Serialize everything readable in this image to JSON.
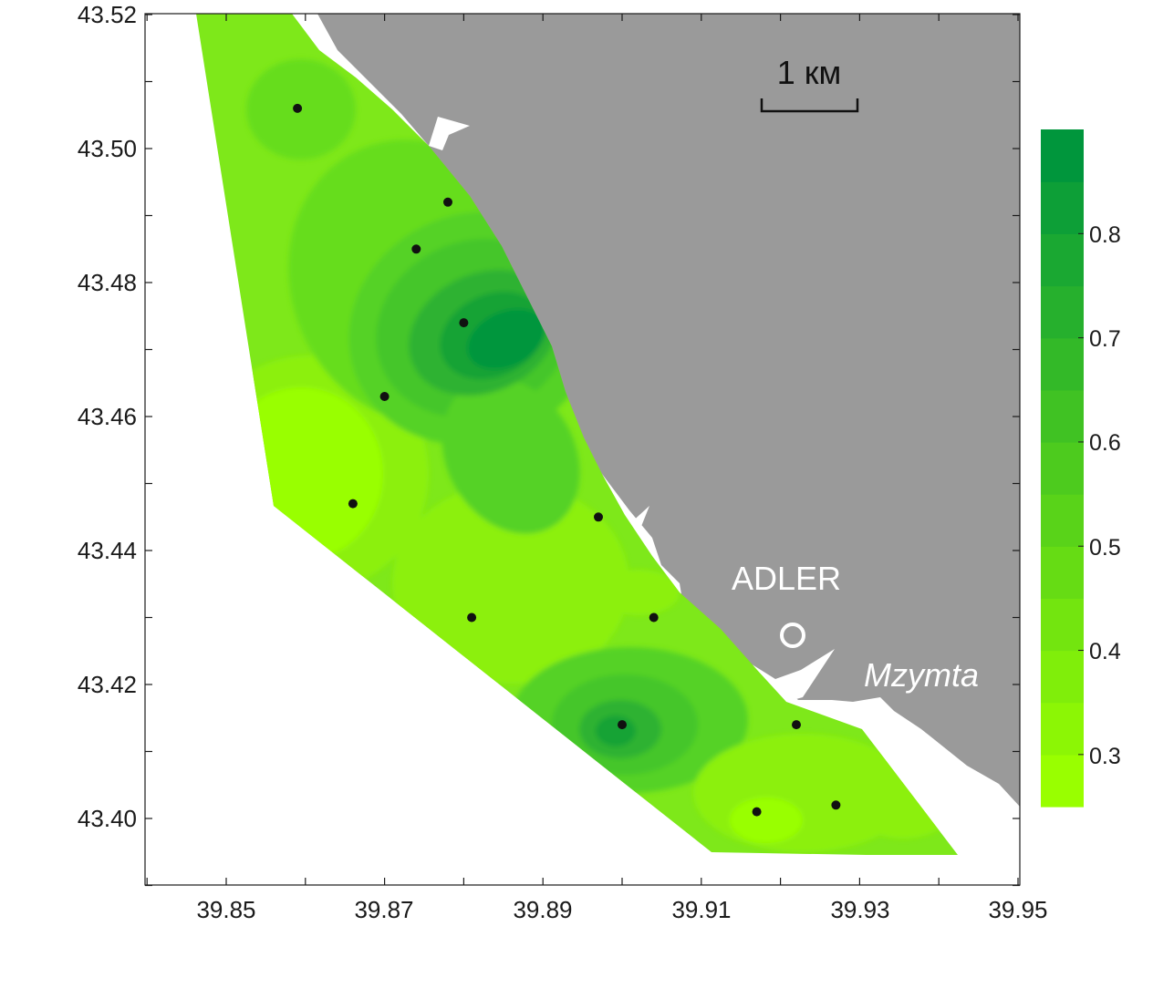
{
  "map": {
    "x_axis": {
      "min": 39.84,
      "max": 39.95,
      "ticks": [
        "39.85",
        "39.87",
        "39.89",
        "39.91",
        "39.93",
        "39.95"
      ]
    },
    "y_axis": {
      "min": 43.39,
      "max": 43.52,
      "ticks": [
        "43.52",
        "43.50",
        "43.48",
        "43.46",
        "43.44",
        "43.42",
        "43.40"
      ]
    },
    "scale_bar": {
      "label": "1 км"
    },
    "places": [
      {
        "label": "ADLER",
        "lon": 39.92,
        "lat": 43.4305
      },
      {
        "label": "Mzymta",
        "lon": 39.932,
        "lat": 43.4215
      }
    ],
    "colorbar": {
      "labels": [
        "0.8",
        "0.7",
        "0.6",
        "0.5",
        "0.4",
        "0.3"
      ],
      "values": [
        0.8,
        0.7,
        0.6,
        0.5,
        0.4,
        0.3
      ],
      "min": 0.25,
      "max": 0.9
    },
    "colors": {
      "land": "#9a9a9a",
      "low": "#99ff00",
      "high": "#00963c",
      "station": "#111111"
    },
    "stations": [
      {
        "lon": 39.859,
        "lat": 43.506
      },
      {
        "lon": 39.878,
        "lat": 43.492
      },
      {
        "lon": 39.874,
        "lat": 43.485
      },
      {
        "lon": 39.88,
        "lat": 43.474
      },
      {
        "lon": 39.87,
        "lat": 43.463
      },
      {
        "lon": 39.866,
        "lat": 43.447
      },
      {
        "lon": 39.897,
        "lat": 43.445
      },
      {
        "lon": 39.881,
        "lat": 43.43
      },
      {
        "lon": 39.904,
        "lat": 43.43
      },
      {
        "lon": 39.9,
        "lat": 43.414
      },
      {
        "lon": 39.922,
        "lat": 43.414
      },
      {
        "lon": 39.917,
        "lat": 43.401
      },
      {
        "lon": 39.927,
        "lat": 43.402
      }
    ]
  }
}
